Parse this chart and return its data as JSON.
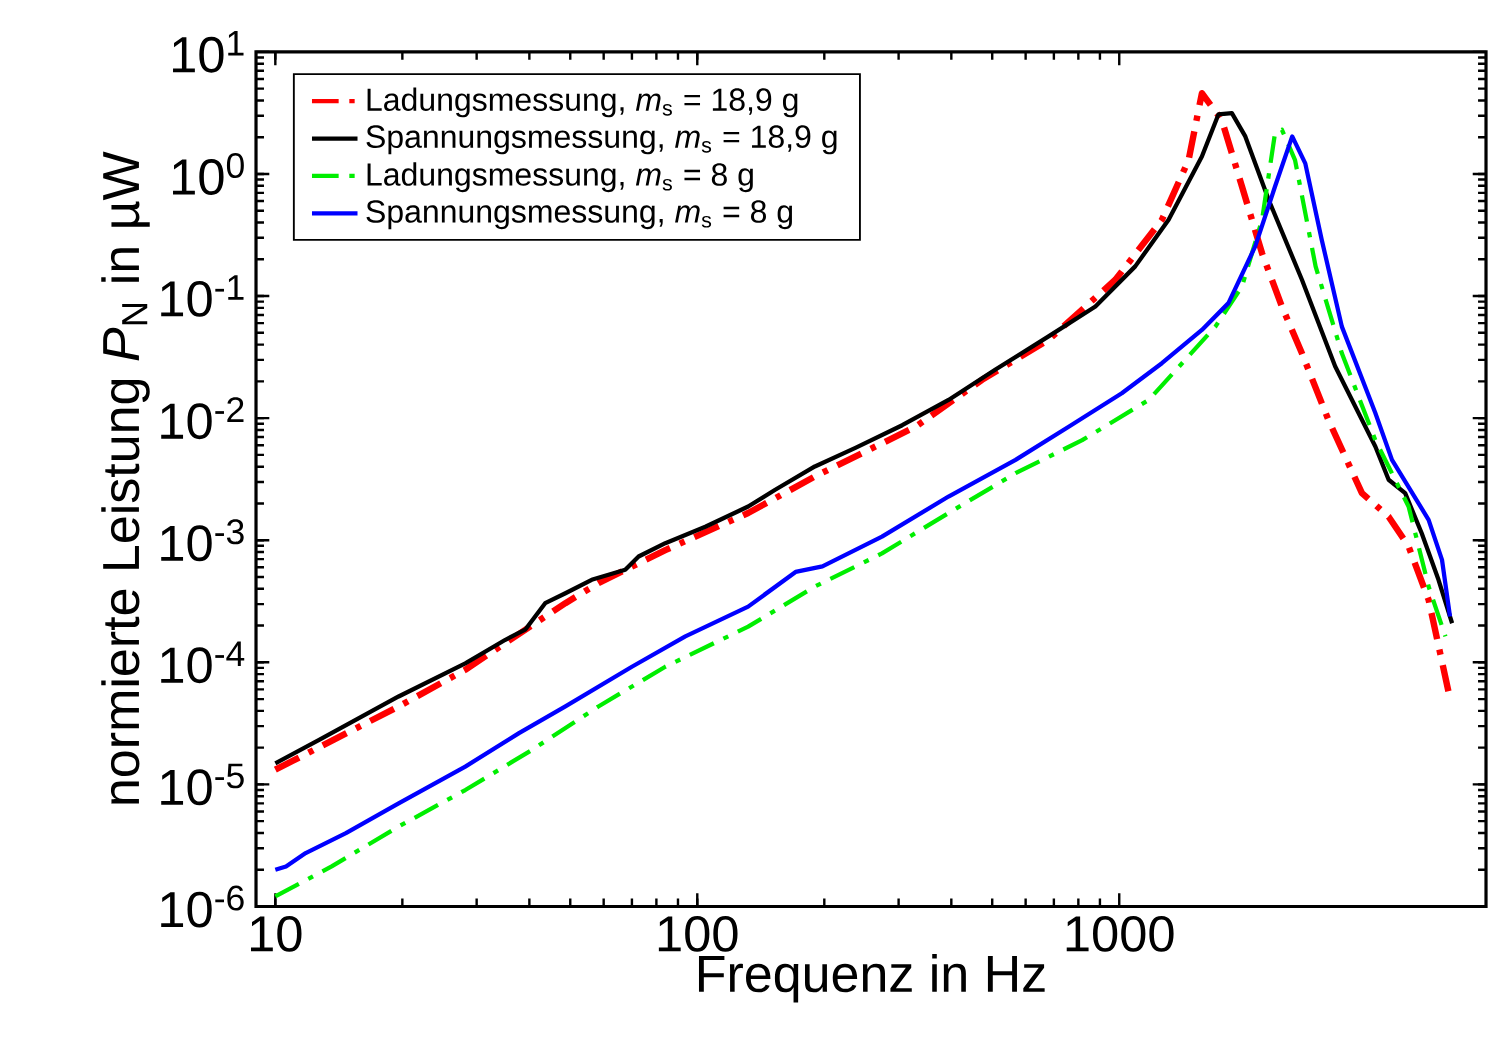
{
  "chart_data": {
    "type": "line",
    "xlabel": "Frequenz in Hz",
    "ylabel": "normierte Leistung *P*$_{N}$ in µW",
    "log": "xy",
    "grid": false,
    "legend": "top left",
    "marker": "none",
    "xlim": [
      9,
      7400
    ],
    "ylim": [
      1e-06,
      10
    ],
    "xticks": [
      10,
      100,
      1000
    ],
    "yticks": [
      {
        "value": 1e-06,
        "label": "10$^{-6}$"
      },
      {
        "value": 1e-05,
        "label": "10$^{-5}$"
      },
      {
        "value": 0.0001,
        "label": "10$^{-4}$"
      },
      {
        "value": 0.001,
        "label": "10$^{-3}$"
      },
      {
        "value": 0.01,
        "label": "10$^{-2}$"
      },
      {
        "value": 0.1,
        "label": "10$^{-1}$"
      },
      {
        "value": 1,
        "label": "10$^{0}$"
      },
      {
        "value": 10,
        "label": "10$^{1}$"
      }
    ],
    "series": [
      {
        "name": "Ladungsmessung, *m*$_{s}$ = 18,9 g",
        "color": "#ff0000",
        "line_style": "dashdot",
        "x": [
          10,
          19.6,
          28.2,
          43.6,
          48.7,
          58.3,
          84,
          132,
          190,
          329,
          473,
          680,
          979,
          1262,
          1460,
          1570,
          1750,
          1954,
          2180,
          2430,
          2710,
          3130,
          3760,
          4350,
          4850,
          5410,
          6040
        ],
        "values": [
          1.32e-05,
          4.35e-05,
          8.7e-05,
          0.000237,
          0.000305,
          0.000445,
          0.00083,
          0.00167,
          0.00333,
          0.0085,
          0.0206,
          0.0438,
          0.136,
          0.421,
          1.3,
          4.58,
          2.77,
          0.789,
          0.224,
          0.082,
          0.034,
          0.0097,
          0.00243,
          0.00156,
          0.00089,
          0.000325,
          5.6e-05
        ]
      },
      {
        "name": "Spannungsmessung, *m*$_{s}$ = 18,9 g",
        "color": "#000000",
        "line_style": "solid",
        "x": [
          10,
          12.7,
          19.6,
          28.2,
          35.1,
          39.1,
          43.6,
          48.7,
          56.2,
          67.5,
          72.6,
          84,
          104.5,
          132,
          153,
          190,
          237,
          306,
          394,
          508,
          680,
          878,
          1091,
          1309,
          1570,
          1718,
          1849,
          1990,
          2260,
          2710,
          3250,
          4045,
          4350,
          4760,
          5210,
          5710,
          6150
        ],
        "values": [
          1.49e-05,
          2.32e-05,
          5.25e-05,
          9.8e-05,
          0.000153,
          0.000185,
          0.000305,
          0.000368,
          0.000474,
          0.000573,
          0.000736,
          0.000946,
          0.00129,
          0.00189,
          0.00259,
          0.00402,
          0.00571,
          0.00875,
          0.0141,
          0.0249,
          0.0467,
          0.082,
          0.175,
          0.421,
          1.39,
          3.07,
          3.15,
          2.03,
          0.614,
          0.136,
          0.0265,
          0.00586,
          0.00313,
          0.00243,
          0.00114,
          0.000474,
          0.000209
        ]
      },
      {
        "name": "Ladungsmessung, *m*$_{s}$ = 8 g",
        "color": "#00ee00",
        "line_style": "dashdot",
        "x": [
          10,
          13.6,
          19.6,
          28.2,
          40.6,
          58.3,
          84,
          132,
          190,
          274,
          394,
          568,
          817,
          1175,
          1690,
          1954,
          2180,
          2340,
          2430,
          2610,
          2920,
          3370,
          4045,
          4850,
          5410,
          5930
        ],
        "values": [
          1.21e-06,
          2.13e-06,
          4.52e-06,
          9e-06,
          1.92e-05,
          4.35e-05,
          9.2e-05,
          0.000196,
          0.000418,
          0.00078,
          0.00167,
          0.00354,
          0.0066,
          0.0141,
          0.0562,
          0.12,
          0.421,
          2.16,
          2.3,
          1.3,
          0.175,
          0.034,
          0.0066,
          0.00189,
          0.000418,
          0.000163
        ]
      },
      {
        "name": "Spannungsmessung, *m*$_{s}$ = 8 g",
        "color": "#0000ff",
        "line_style": "solid",
        "x": [
          10,
          10.6,
          11.8,
          14.7,
          19.6,
          28.2,
          37.8,
          48.7,
          70,
          93.7,
          132,
          171,
          198,
          274,
          394,
          568,
          759,
          1014,
          1262,
          1570,
          1815,
          2100,
          2340,
          2570,
          2760,
          3020,
          3370,
          4045,
          4430,
          5410,
          5820,
          6080
        ],
        "values": [
          2e-06,
          2.13e-06,
          2.74e-06,
          3.99e-06,
          7e-06,
          1.4e-05,
          2.63e-05,
          4.35e-05,
          9.2e-05,
          0.000163,
          0.000286,
          0.00055,
          0.00061,
          0.00107,
          0.00228,
          0.00455,
          0.0085,
          0.016,
          0.0282,
          0.0528,
          0.0875,
          0.255,
          0.789,
          2.03,
          1.22,
          0.288,
          0.0562,
          0.011,
          0.00455,
          0.00147,
          0.00069,
          0.000237
        ]
      }
    ]
  }
}
